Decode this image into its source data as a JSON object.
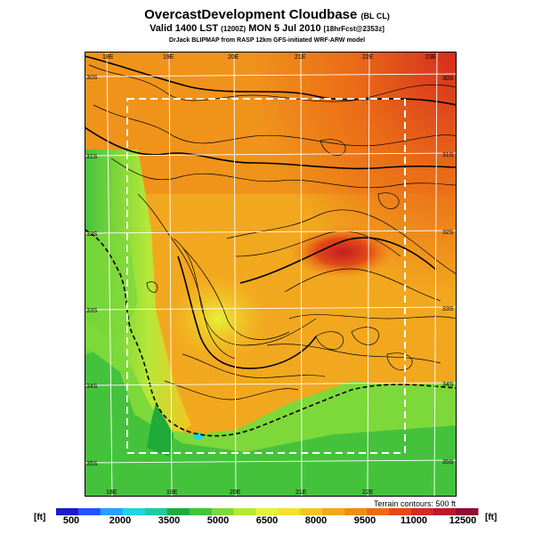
{
  "title": {
    "main": "OvercastDevelopment Cloudbase",
    "suffix": "(BL CL)"
  },
  "valid": {
    "text": "Valid 1400 LST",
    "utc": "(1200Z)",
    "date": "MON 5 Jul 2010",
    "forecast": "[18hrFcst@2353z]"
  },
  "credit": "DrJack BLIPMAP from RASP 12km GFS-initiated WRF-ARW model",
  "map": {
    "lon_labels_top": [
      "18E",
      "19E",
      "20E",
      "21E",
      "22E",
      "23E"
    ],
    "lon_labels_bottom": [
      "18E",
      "19E",
      "20E",
      "21E",
      "22E"
    ],
    "lat_labels_left": [
      "30S",
      "31S",
      "32S",
      "33S",
      "34S",
      "35S"
    ],
    "lat_labels_right": [
      "30S",
      "31S",
      "32S",
      "33S",
      "34S",
      "35S"
    ],
    "terrain_note": "Terrain contours: 500 ft"
  },
  "colorbar": {
    "unit_left": "[ft]",
    "unit_right": "[ft]",
    "ticks": [
      "500",
      "2000",
      "3500",
      "5000",
      "6500",
      "8000",
      "9500",
      "11000",
      "12500"
    ],
    "colors": [
      "#1a1acc",
      "#2255ff",
      "#2aa0ff",
      "#22d4e0",
      "#22c8a0",
      "#1faa3a",
      "#45c23c",
      "#7dd83a",
      "#b6e838",
      "#e6f23a",
      "#f5e02c",
      "#f5c423",
      "#f2a81e",
      "#ef8c1a",
      "#ea6a17",
      "#e24a16",
      "#d42b20",
      "#b81a2c",
      "#8e0f33"
    ]
  }
}
